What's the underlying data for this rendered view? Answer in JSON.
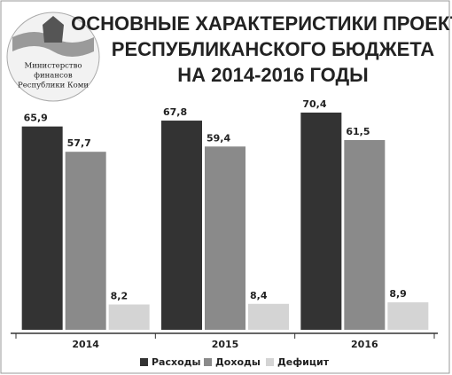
{
  "logo_text": [
    "Министерство",
    "финансов",
    "Республики Коми"
  ],
  "chart_data": {
    "type": "bar",
    "title": [
      "ОСНОВНЫЕ ХАРАКТЕРИСТИКИ ПРОЕКТА",
      "РЕСПУБЛИКАНСКОГО БЮДЖЕТА",
      "НА 2014-2016 ГОДЫ"
    ],
    "categories": [
      "2014",
      "2015",
      "2016"
    ],
    "series": [
      {
        "name": "Расходы",
        "color": "#333333",
        "values": [
          65.9,
          67.8,
          70.4
        ],
        "value_labels": [
          "65,9",
          "67,8",
          "70,4"
        ]
      },
      {
        "name": "Доходы",
        "color": "#8a8a8a",
        "values": [
          57.7,
          59.4,
          61.5
        ],
        "value_labels": [
          "57,7",
          "59,4",
          "61,5"
        ]
      },
      {
        "name": "Дефицит",
        "color": "#d4d4d4",
        "values": [
          8.2,
          8.4,
          8.9
        ],
        "value_labels": [
          "8,2",
          "8,4",
          "8,9"
        ]
      }
    ],
    "legend": "bottom"
  }
}
